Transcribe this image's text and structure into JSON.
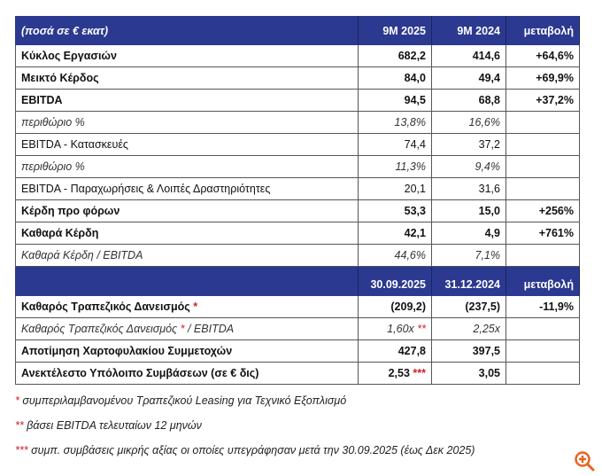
{
  "header1": {
    "label": "(ποσά σε € εκατ)",
    "c1": "9M 2025",
    "c2": "9M 2024",
    "c3": "μεταβολή"
  },
  "rows1": [
    {
      "label": "Κύκλος Εργασιών",
      "c1": "682,2",
      "c2": "414,6",
      "c3": "+64,6%"
    },
    {
      "label": "Μεικτό Κέρδος",
      "c1": "84,0",
      "c2": "49,4",
      "c3": "+69,9%"
    },
    {
      "label": "EBITDA",
      "c1": "94,5",
      "c2": "68,8",
      "c3": "+37,2%"
    },
    {
      "label": "περιθώριο %",
      "c1": "13,8%",
      "c2": "16,6%",
      "c3": ""
    },
    {
      "label": "EBITDA - Κατασκευές",
      "c1": "74,4",
      "c2": "37,2",
      "c3": ""
    },
    {
      "label": "περιθώριο %",
      "c1": "11,3%",
      "c2": "9,4%",
      "c3": ""
    },
    {
      "label": "EBITDA - Παραχωρήσεις & Λοιπές Δραστηριότητες",
      "c1": "20,1",
      "c2": "31,6",
      "c3": ""
    },
    {
      "label": "Κέρδη προ φόρων",
      "c1": "53,3",
      "c2": "15,0",
      "c3": "+256%"
    },
    {
      "label": "Καθαρά Κέρδη",
      "c1": "42,1",
      "c2": "4,9",
      "c3": "+761%"
    },
    {
      "label": "Καθαρά Κέρδη / EBITDA",
      "c1": "44,6%",
      "c2": "7,1%",
      "c3": ""
    }
  ],
  "header2": {
    "label": "",
    "c1": "30.09.2025",
    "c2": "31.12.2024",
    "c3": "μεταβολή"
  },
  "rows2": [
    {
      "label": "Καθαρός Τραπεζικός Δανεισμός",
      "mark": "*",
      "c1": "(209,2)",
      "c2": "(237,5)",
      "c3": "-11,9%"
    },
    {
      "label": "Καθαρός Τραπεζικός Δανεισμός",
      "mark": "*",
      "suffix": " / EBITDA",
      "c1": "1,60x",
      "c1mark": "**",
      "c2": "2,25x",
      "c3": ""
    },
    {
      "label": "Αποτίμηση Χαρτοφυλακίου Συμμετοχών",
      "c1": "427,8",
      "c2": "397,5",
      "c3": ""
    },
    {
      "label": "Ανεκτέλεστο Υπόλοιπο Συμβάσεων (σε € δις)",
      "c1": "2,53",
      "c1mark": "***",
      "c2": "3,05",
      "c3": ""
    }
  ],
  "footnotes": [
    {
      "mark": "*",
      "text": " συμπεριλαμβανομένου Τραπεζικού Leasing για Τεχνικό Εξοπλισμό"
    },
    {
      "mark": "**",
      "text": " βάσει EBITDA τελευταίων 12 μηνών"
    },
    {
      "mark": "***",
      "text": " συμπ. συμβάσεις μικρής αξίας οι οποίες υπεγράφησαν μετά την 30.09.2025 (έως Δεκ 2025)"
    }
  ],
  "colors": {
    "header": "#2b3990",
    "accent": "#d0202a",
    "zoom": "#e8641e"
  }
}
